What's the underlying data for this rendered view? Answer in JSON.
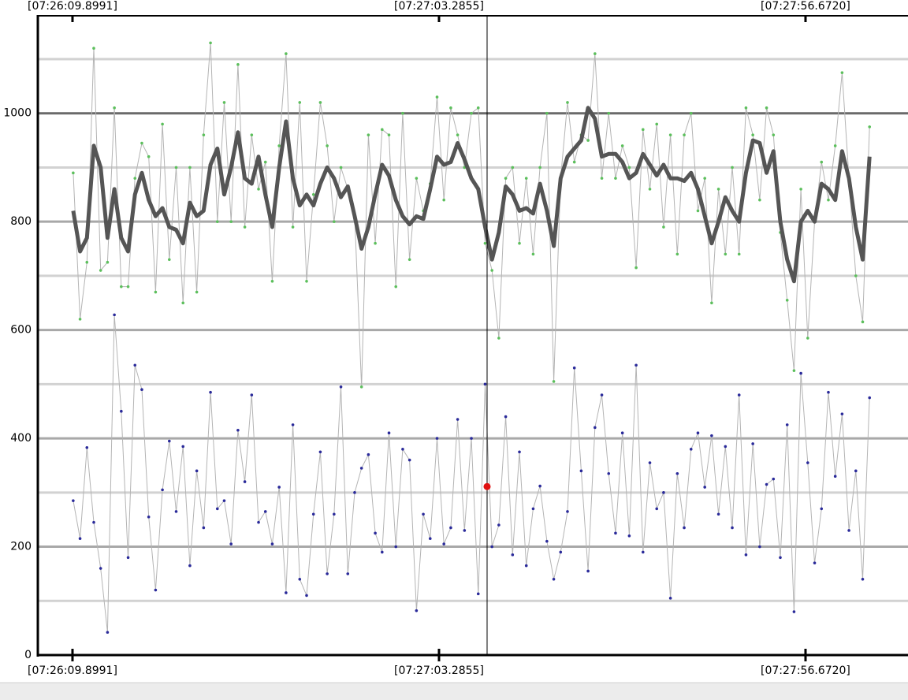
{
  "chart_data": {
    "type": "line",
    "x": [
      26770,
      26771,
      26772,
      26773,
      26774,
      26775,
      26776,
      26777,
      26778,
      26779,
      26780,
      26781,
      26782,
      26783,
      26784,
      26785,
      26786,
      26787,
      26788,
      26789,
      26790,
      26791,
      26792,
      26793,
      26794,
      26795,
      26796,
      26797,
      26798,
      26799,
      26800,
      26801,
      26802,
      26803,
      26804,
      26805,
      26806,
      26807,
      26808,
      26809,
      26810,
      26811,
      26812,
      26813,
      26814,
      26815,
      26816,
      26817,
      26818,
      26819,
      26820,
      26821,
      26822,
      26823,
      26824,
      26825,
      26826,
      26827,
      26828,
      26829,
      26830,
      26831,
      26832,
      26833,
      26834,
      26835,
      26836,
      26837,
      26838,
      26839,
      26840,
      26841,
      26842,
      26843,
      26844,
      26845,
      26846,
      26847,
      26848,
      26849,
      26850,
      26851,
      26852,
      26853,
      26854,
      26855,
      26856,
      26857,
      26858,
      26859,
      26860,
      26861,
      26862,
      26863,
      26864,
      26865,
      26866,
      26867,
      26868,
      26869,
      26870,
      26871,
      26872,
      26873,
      26874,
      26875,
      26876,
      26877,
      26878,
      26879,
      26880,
      26881,
      26882,
      26883,
      26884,
      26885,
      26886
    ],
    "series": [
      {
        "color": "#5cbf5c",
        "line_color": "#b4b4b4",
        "line_width": 1,
        "markers": true,
        "values": [
          890,
          620,
          725,
          1120,
          710,
          725,
          1010,
          680,
          680,
          880,
          945,
          920,
          670,
          980,
          730,
          900,
          650,
          900,
          670,
          960,
          1130,
          800,
          1020,
          800,
          1090,
          790,
          960,
          860,
          910,
          690,
          940,
          1110,
          790,
          1020,
          690,
          850,
          1020,
          940,
          800,
          900,
          860,
          810,
          495,
          960,
          760,
          970,
          960,
          680,
          1000,
          730,
          880,
          820,
          870,
          1030,
          840,
          1010,
          960,
          900,
          1000,
          1010,
          760,
          710,
          585,
          880,
          900,
          760,
          880,
          740,
          900,
          1000,
          505,
          880,
          1020,
          910,
          960,
          950,
          1110,
          880,
          1000,
          880,
          940,
          900,
          715,
          970,
          860,
          980,
          790,
          960,
          740,
          960,
          1000,
          820,
          880,
          650,
          860,
          740,
          900,
          740,
          1010,
          960,
          840,
          1010,
          960,
          780,
          655,
          525,
          860,
          585,
          800,
          910,
          840,
          940,
          1075,
          880,
          700,
          615,
          975
        ]
      },
      {
        "color": "#2a2a9a",
        "line_color": "#b4b4b4",
        "line_width": 1,
        "markers": true,
        "values": [
          285,
          215,
          383,
          245,
          160,
          42,
          628,
          450,
          180,
          535,
          490,
          255,
          120,
          305,
          395,
          265,
          385,
          165,
          340,
          235,
          485,
          270,
          285,
          205,
          415,
          320,
          480,
          245,
          265,
          205,
          310,
          115,
          425,
          140,
          110,
          260,
          375,
          150,
          260,
          495,
          150,
          300,
          345,
          370,
          225,
          190,
          410,
          200,
          380,
          360,
          82,
          260,
          215,
          400,
          205,
          235,
          435,
          230,
          400,
          113,
          500,
          200,
          240,
          440,
          185,
          375,
          165,
          270,
          312,
          210,
          140,
          190,
          265,
          530,
          340,
          155,
          420,
          480,
          335,
          225,
          410,
          220,
          535,
          190,
          355,
          270,
          300,
          105,
          335,
          235,
          380,
          410,
          310,
          405,
          260,
          385,
          235,
          480,
          185,
          390,
          200,
          315,
          325,
          180,
          425,
          80,
          520,
          355,
          170,
          270,
          485,
          330,
          445,
          230,
          340,
          140,
          475
        ]
      },
      {
        "color": "#555555",
        "line_color": "#555555",
        "line_width": 5,
        "markers": false,
        "values": [
          820,
          745,
          770,
          940,
          900,
          770,
          860,
          770,
          745,
          850,
          890,
          840,
          810,
          825,
          790,
          785,
          760,
          835,
          810,
          820,
          905,
          935,
          850,
          900,
          965,
          880,
          870,
          920,
          850,
          790,
          900,
          985,
          880,
          830,
          850,
          830,
          870,
          900,
          880,
          845,
          865,
          810,
          750,
          790,
          850,
          905,
          885,
          840,
          810,
          795,
          810,
          805,
          860,
          920,
          905,
          910,
          945,
          915,
          880,
          860,
          790,
          730,
          780,
          865,
          850,
          820,
          825,
          815,
          870,
          820,
          755,
          880,
          920,
          935,
          950,
          1010,
          990,
          920,
          925,
          925,
          910,
          880,
          890,
          925,
          905,
          885,
          905,
          880,
          880,
          875,
          890,
          860,
          810,
          760,
          800,
          845,
          820,
          800,
          890,
          950,
          945,
          890,
          930,
          800,
          730,
          690,
          800,
          820,
          800,
          870,
          860,
          840,
          930,
          880,
          790,
          730,
          920
        ]
      }
    ],
    "cursor": {
      "x": 26830.29,
      "value": 311,
      "color": "#e01010"
    },
    "xlim": [
      26764.85,
      26891.6
    ],
    "xticks": [
      {
        "value": 26769.8991,
        "label": "[07:26:09.8991]"
      },
      {
        "value": 26823.2855,
        "label": "[07:27:03.2855]"
      },
      {
        "value": 26876.672,
        "label": "[07:27:56.6720]"
      }
    ],
    "ylim": [
      0,
      1180
    ],
    "yticks": [
      0,
      200,
      400,
      600,
      800,
      1000
    ],
    "y_minor_ticks": [
      100,
      300,
      500,
      700,
      900,
      1100
    ],
    "grid": true
  }
}
